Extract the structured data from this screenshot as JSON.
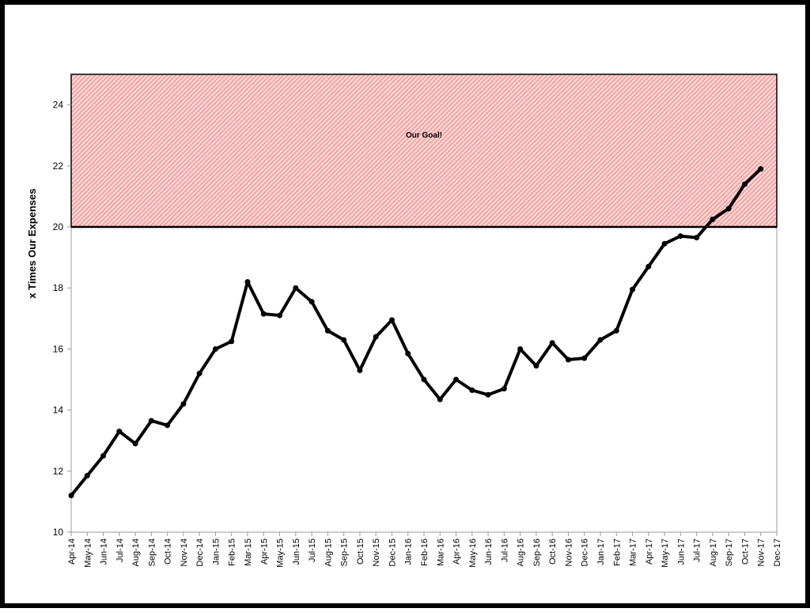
{
  "chart_data": {
    "type": "line",
    "y_label": "x Times Our Expenses",
    "categories": [
      "Apr-14",
      "May-14",
      "Jun-14",
      "Jul-14",
      "Aug-14",
      "Sep-14",
      "Oct-14",
      "Nov-14",
      "Dec-14",
      "Jan-15",
      "Feb-15",
      "Mar-15",
      "Apr-15",
      "May-15",
      "Jun-15",
      "Jul-15",
      "Aug-15",
      "Sep-15",
      "Oct-15",
      "Nov-15",
      "Dec-15",
      "Jan-16",
      "Feb-16",
      "Mar-16",
      "Apr-16",
      "May-16",
      "Jun-16",
      "Jul-16",
      "Aug-16",
      "Sep-16",
      "Oct-16",
      "Nov-16",
      "Dec-16",
      "Jan-17",
      "Feb-17",
      "Mar-17",
      "Apr-17",
      "May-17",
      "Jun-17",
      "Jul-17",
      "Aug-17",
      "Sep-17",
      "Oct-17",
      "Nov-17",
      "Dec-17"
    ],
    "series": [
      {
        "color": "#000000",
        "values": [
          11.2,
          11.85,
          12.5,
          13.3,
          12.9,
          13.65,
          13.5,
          14.2,
          15.2,
          16.0,
          16.25,
          18.2,
          17.15,
          17.1,
          18.0,
          17.55,
          16.6,
          16.3,
          15.3,
          16.4,
          16.95,
          15.85,
          15.0,
          14.35,
          15.0,
          14.65,
          14.5,
          14.7,
          16.0,
          15.45,
          16.2,
          15.65,
          15.7,
          16.3,
          16.6,
          17.95,
          18.7,
          19.45,
          19.7,
          19.65,
          20.25,
          20.6,
          21.4,
          21.9,
          null
        ]
      }
    ],
    "ylim": [
      10,
      25
    ],
    "yticks": [
      10,
      12,
      14,
      16,
      18,
      20,
      22,
      24
    ],
    "goal_band": {
      "from": 20,
      "to": 25,
      "label": "Our Goal!",
      "color": "#f5a3a3"
    }
  }
}
